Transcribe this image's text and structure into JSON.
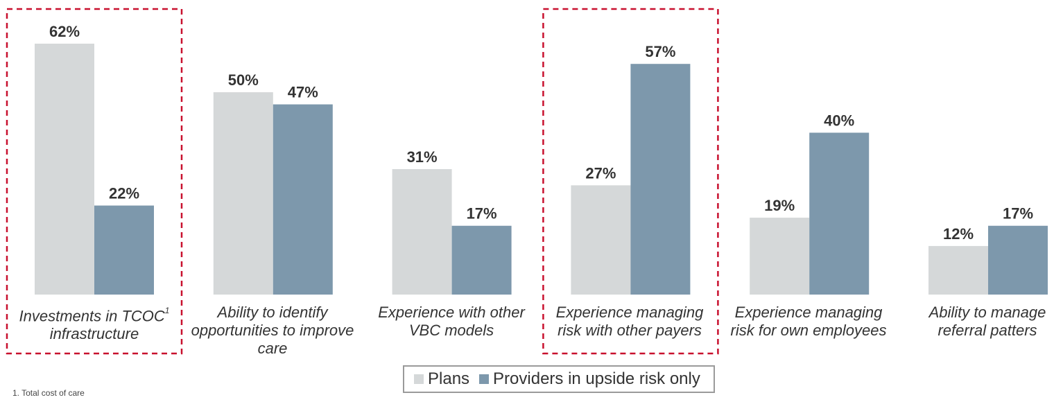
{
  "chart_data": {
    "type": "bar",
    "title": "",
    "xlabel": "",
    "ylabel": "",
    "ylim": [
      0,
      65
    ],
    "grid": false,
    "legend_position": "bottom-center",
    "categories": [
      {
        "line1": "Investments in TCOC",
        "sup": "1",
        "line2": "infrastructure",
        "line3": "",
        "highlighted": true
      },
      {
        "line1": "Ability to identify",
        "sup": "",
        "line2": "opportunities to improve",
        "line3": "care",
        "highlighted": false
      },
      {
        "line1": "Experience with other",
        "sup": "",
        "line2": "VBC models",
        "line3": "",
        "highlighted": false
      },
      {
        "line1": "Experience managing",
        "sup": "",
        "line2": "risk with other payers",
        "line3": "",
        "highlighted": true
      },
      {
        "line1": "Experience managing",
        "sup": "",
        "line2": "risk for own employees",
        "line3": "",
        "highlighted": false
      },
      {
        "line1": "Ability to manage",
        "sup": "",
        "line2": "referral patters",
        "line3": "",
        "highlighted": false
      }
    ],
    "series": [
      {
        "name": "Plans",
        "color": "#d5d8d9",
        "values": [
          62,
          50,
          31,
          27,
          19,
          12
        ],
        "labels": [
          "62%",
          "50%",
          "31%",
          "27%",
          "19%",
          "12%"
        ]
      },
      {
        "name": "Providers in upside risk only",
        "color": "#7d98ac",
        "values": [
          22,
          47,
          17,
          57,
          40,
          17
        ],
        "labels": [
          "22%",
          "47%",
          "17%",
          "57%",
          "40%",
          "17%"
        ]
      }
    ],
    "highlight_color": "#c8102e"
  },
  "legend": {
    "plans": "Plans",
    "providers": "Providers in upside risk only"
  },
  "footnote": "1. Total cost of care"
}
